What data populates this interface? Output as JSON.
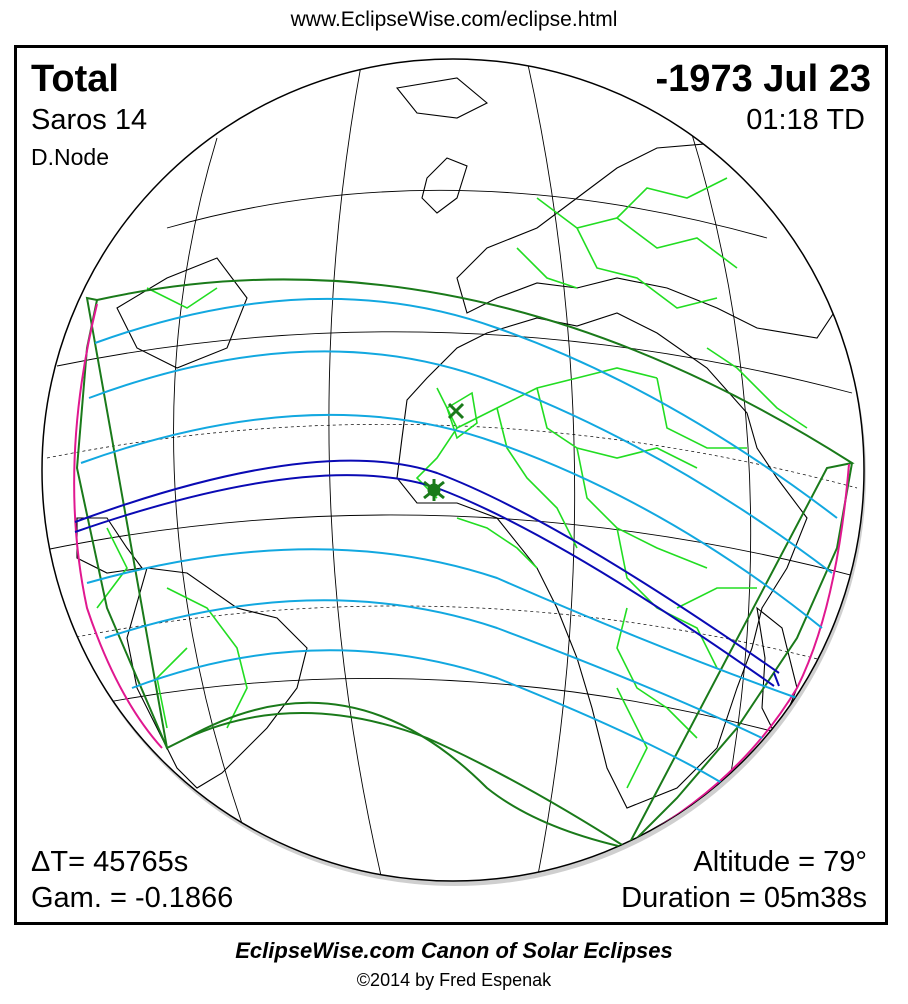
{
  "header": {
    "url": "www.EclipseWise.com/eclipse.html"
  },
  "eclipse": {
    "type": "Total",
    "date": "-1973 Jul 23",
    "saros": "Saros  14",
    "time": "01:18 TD",
    "node": "D.Node",
    "delta_t": "ΔT=  45765s",
    "gamma": "Gam. = -0.1866",
    "altitude": "Altitude = 79°",
    "duration": "Duration = 05m38s"
  },
  "footer": {
    "canon": "EclipseWise.com Canon of Solar Eclipses",
    "copyright": "©2014 by Fred Espenak"
  },
  "colors": {
    "penumbra_limits": "#1a7a1a",
    "penumbral_lines": "#12a8e0",
    "umbral_path": "#0a0ab4",
    "sunrise_sunset": "#e01890",
    "borders": "#22dd22",
    "greatest_eclipse_marker": "#1a7a1a"
  },
  "markers": [
    "greatest-eclipse-star",
    "greatest-duration-cross"
  ]
}
